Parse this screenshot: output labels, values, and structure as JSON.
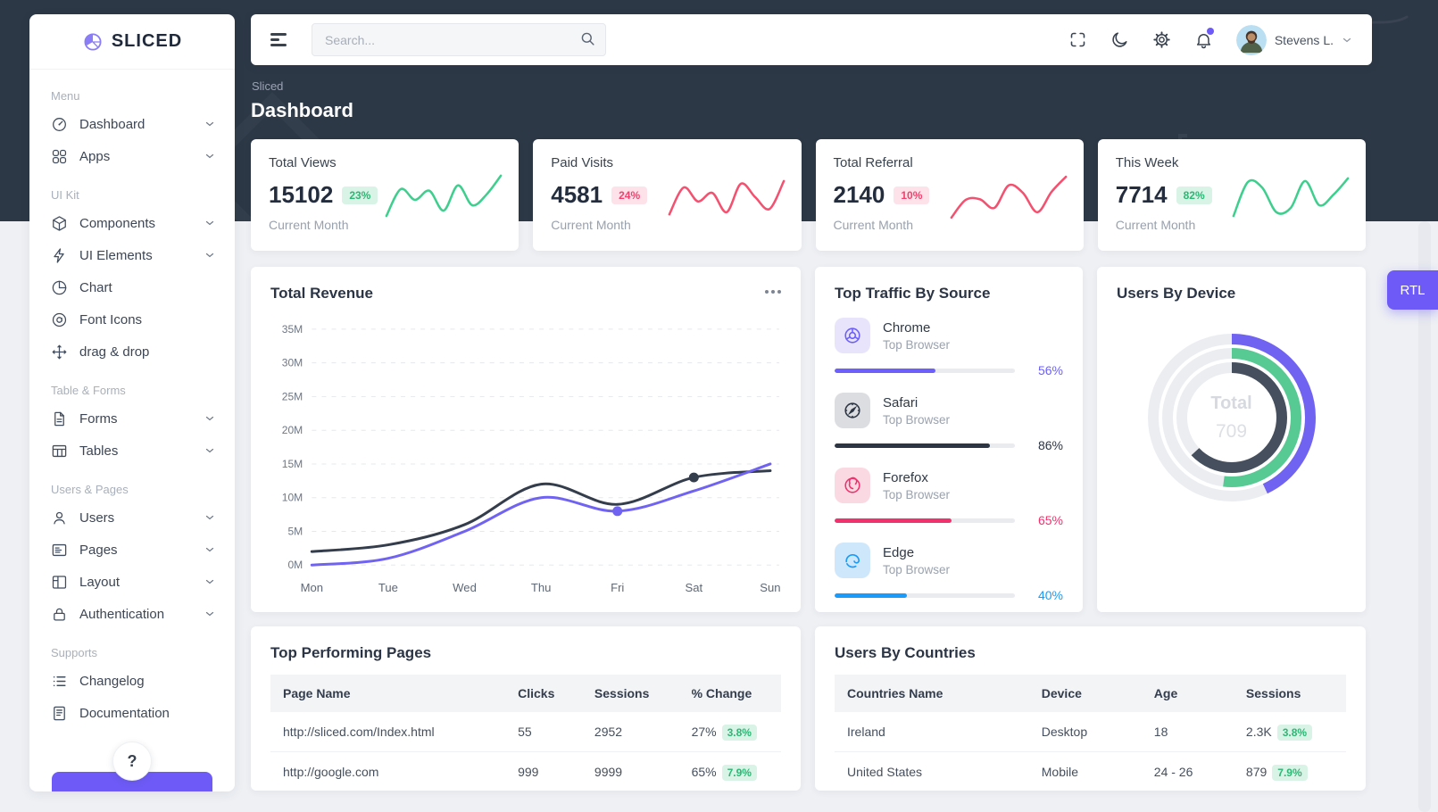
{
  "brand": {
    "name": "SLICED"
  },
  "header": {
    "search_placeholder": "Search...",
    "user_name": "Stevens L."
  },
  "page": {
    "breadcrumb": "Sliced",
    "title": "Dashboard",
    "rtl_label": "RTL"
  },
  "sidebar": {
    "help_glyph": "?",
    "sections": [
      {
        "label": "Menu",
        "items": [
          {
            "label": "Dashboard",
            "icon": "dashboard-icon",
            "chevron": true
          },
          {
            "label": "Apps",
            "icon": "apps-icon",
            "chevron": true
          }
        ]
      },
      {
        "label": "UI Kit",
        "items": [
          {
            "label": "Components",
            "icon": "components-icon",
            "chevron": true
          },
          {
            "label": "UI Elements",
            "icon": "ui-elements-icon",
            "chevron": true
          },
          {
            "label": "Chart",
            "icon": "chart-icon",
            "chevron": false
          },
          {
            "label": "Font Icons",
            "icon": "font-icons-icon",
            "chevron": false
          },
          {
            "label": "drag & drop",
            "icon": "drag-drop-icon",
            "chevron": false
          }
        ]
      },
      {
        "label": "Table & Forms",
        "items": [
          {
            "label": "Forms",
            "icon": "forms-icon",
            "chevron": true
          },
          {
            "label": "Tables",
            "icon": "tables-icon",
            "chevron": true
          }
        ]
      },
      {
        "label": "Users & Pages",
        "items": [
          {
            "label": "Users",
            "icon": "users-icon",
            "chevron": true
          },
          {
            "label": "Pages",
            "icon": "pages-icon",
            "chevron": true
          },
          {
            "label": "Layout",
            "icon": "layout-icon",
            "chevron": true
          },
          {
            "label": "Authentication",
            "icon": "lock-icon",
            "chevron": true
          }
        ]
      },
      {
        "label": "Supports",
        "items": [
          {
            "label": "Changelog",
            "icon": "changelog-icon",
            "chevron": false
          },
          {
            "label": "Documentation",
            "icon": "documentation-icon",
            "chevron": false
          }
        ]
      }
    ]
  },
  "stats": [
    {
      "title": "Total Views",
      "value": "15102",
      "badge": "23%",
      "badge_type": "green",
      "caption": "Current Month",
      "line_color": "#3ecf8e",
      "spark": [
        15,
        65,
        45,
        62,
        25,
        72,
        35,
        55,
        90
      ]
    },
    {
      "title": "Paid Visits",
      "value": "4581",
      "badge": "24%",
      "badge_type": "red",
      "caption": "Current Month",
      "line_color": "#f3516f",
      "spark": [
        18,
        68,
        42,
        58,
        22,
        75,
        50,
        28,
        80
      ]
    },
    {
      "title": "Total Referral",
      "value": "2140",
      "badge": "10%",
      "badge_type": "red",
      "caption": "Current Month",
      "line_color": "#f3516f",
      "spark": [
        12,
        45,
        46,
        30,
        72,
        58,
        22,
        60,
        88
      ]
    },
    {
      "title": "This Week",
      "value": "7714",
      "badge": "82%",
      "badge_type": "green",
      "caption": "Current Month",
      "line_color": "#3ecf8e",
      "spark": [
        15,
        78,
        68,
        22,
        30,
        80,
        35,
        55,
        85
      ]
    }
  ],
  "chart_data": [
    {
      "id": "revenue",
      "type": "line",
      "title": "Total Revenue",
      "x": [
        "Mon",
        "Tue",
        "Wed",
        "Thu",
        "Fri",
        "Sat",
        "Sun"
      ],
      "yticks": [
        0,
        5,
        10,
        15,
        20,
        25,
        30,
        35
      ],
      "ytick_suffix": "M",
      "ylim": [
        0,
        35
      ],
      "grid": "dashed-horizontal",
      "legend": "none",
      "series": [
        {
          "name": "dark-series",
          "color": "#343d4c",
          "values": [
            2,
            3,
            6,
            12,
            9,
            13,
            14
          ],
          "marker_index": 5
        },
        {
          "name": "purple-series",
          "color": "#7163f1",
          "values": [
            0,
            1,
            5,
            10,
            8,
            11,
            15
          ],
          "marker_index": 4
        }
      ]
    },
    {
      "id": "users-by-device",
      "type": "donut",
      "title": "Users By Device",
      "center_label": "Total",
      "center_value": "709",
      "track_color": "#ebedf1",
      "rings": [
        {
          "color": "#7163f1",
          "percent": 43
        },
        {
          "color": "#57ca94",
          "percent": 52
        },
        {
          "color": "#454f5e",
          "percent": 63
        }
      ]
    }
  ],
  "traffic": {
    "title": "Top Traffic By Source",
    "items": [
      {
        "name": "Chrome",
        "subtitle": "Top Browser",
        "percent": "56%",
        "value": 56,
        "color": "#6c5ffc",
        "tile_bg": "#e8e4fb",
        "icon": "chrome-icon"
      },
      {
        "name": "Safari",
        "subtitle": "Top Browser",
        "percent": "86%",
        "value": 86,
        "color": "#2c3544",
        "tile_bg": "#dcdde1",
        "icon": "safari-icon"
      },
      {
        "name": "Forefox",
        "subtitle": "Top Browser",
        "percent": "65%",
        "value": 65,
        "color": "#f1316e",
        "tile_bg": "#fbd9e3",
        "icon": "firefox-icon"
      },
      {
        "name": "Edge",
        "subtitle": "Top Browser",
        "percent": "40%",
        "value": 40,
        "color": "#189bfa",
        "tile_bg": "#cfe7fb",
        "icon": "edge-icon"
      }
    ]
  },
  "pages_table": {
    "title": "Top Performing Pages",
    "headers": [
      "Page Name",
      "Clicks",
      "Sessions",
      "% Change"
    ],
    "rows": [
      {
        "page": "http://sliced.com/Index.html",
        "clicks": "55",
        "sessions": "2952",
        "change": "27%",
        "badge": "3.8%",
        "badge_type": "green"
      },
      {
        "page": "http://google.com",
        "clicks": "999",
        "sessions": "9999",
        "change": "65%",
        "badge": "7.9%",
        "badge_type": "green"
      }
    ]
  },
  "countries_table": {
    "title": "Users By Countries",
    "headers": [
      "Countries Name",
      "Device",
      "Age",
      "Sessions"
    ],
    "rows": [
      {
        "country": "Ireland",
        "device": "Desktop",
        "age": "18",
        "sessions": "2.3K",
        "badge": "3.8%",
        "badge_type": "green"
      },
      {
        "country": "United States",
        "device": "Mobile",
        "age": "24 - 26",
        "sessions": "879",
        "badge": "7.9%",
        "badge_type": "green"
      }
    ]
  },
  "colors": {
    "accent": "#6e5bf7",
    "band": "#2d3847",
    "green": "#3ecf8e",
    "red": "#f3516f",
    "badge_green_bg": "#d9f3e6",
    "badge_green_text": "#2db774",
    "badge_red_bg": "#fde2ea",
    "badge_red_text": "#f2416e"
  }
}
